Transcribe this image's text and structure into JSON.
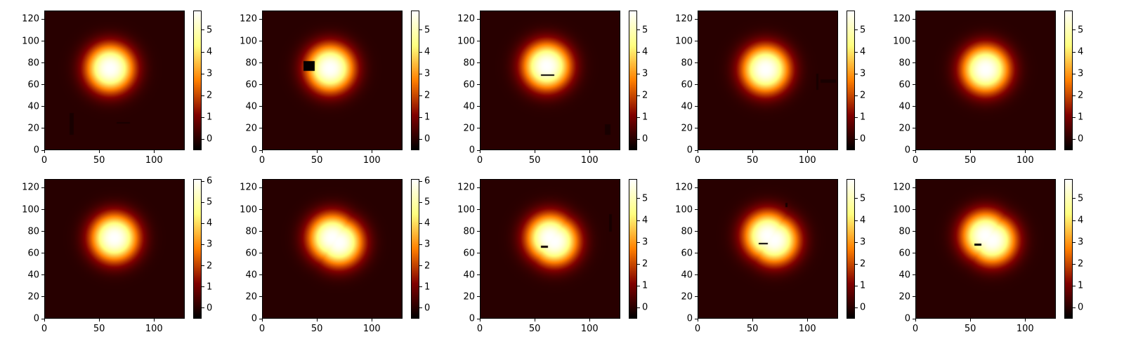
{
  "chart_data": [
    {
      "type": "heatmap",
      "title": "",
      "xlabel": "",
      "ylabel": "",
      "x_range": [
        0,
        128
      ],
      "y_range": [
        0,
        128
      ],
      "x_ticks": [
        0,
        50,
        100
      ],
      "y_ticks": [
        0,
        20,
        40,
        60,
        80,
        100,
        120
      ],
      "colormap": "afmhot",
      "colorbar_range": [
        -0.5,
        5.9
      ],
      "colorbar_ticks": [
        0,
        1,
        2,
        3,
        4,
        5
      ],
      "blob": {
        "center": [
          60,
          75
        ],
        "radius": 24,
        "peak": 5.9
      },
      "features": [
        {
          "kind": "rect",
          "x": [
            23,
            27
          ],
          "y": [
            14,
            34
          ],
          "value": -0.2
        },
        {
          "kind": "rect",
          "x": [
            66,
            78
          ],
          "y": [
            24.5,
            26
          ],
          "value": -0.2
        }
      ]
    },
    {
      "type": "heatmap",
      "title": "",
      "xlabel": "",
      "ylabel": "",
      "x_range": [
        0,
        128
      ],
      "y_range": [
        0,
        128
      ],
      "x_ticks": [
        0,
        50,
        100
      ],
      "y_ticks": [
        0,
        20,
        40,
        60,
        80,
        100,
        120
      ],
      "colormap": "afmhot",
      "colorbar_range": [
        -0.5,
        5.9
      ],
      "colorbar_ticks": [
        0,
        1,
        2,
        3,
        4,
        5
      ],
      "blob": {
        "center": [
          62,
          75
        ],
        "radius": 24,
        "peak": 5.9
      },
      "features": [
        {
          "kind": "rect",
          "x": [
            38,
            48
          ],
          "y": [
            73,
            82
          ],
          "value": -0.45
        }
      ]
    },
    {
      "type": "heatmap",
      "title": "",
      "xlabel": "",
      "ylabel": "",
      "x_range": [
        0,
        128
      ],
      "y_range": [
        0,
        128
      ],
      "x_ticks": [
        0,
        50,
        100
      ],
      "y_ticks": [
        0,
        20,
        40,
        60,
        80,
        100,
        120
      ],
      "colormap": "afmhot",
      "colorbar_range": [
        -0.5,
        5.9
      ],
      "colorbar_ticks": [
        0,
        1,
        2,
        3,
        4,
        5
      ],
      "blob": {
        "center": [
          61,
          77
        ],
        "radius": 24,
        "peak": 5.9
      },
      "features": [
        {
          "kind": "rect",
          "x": [
            56,
            68
          ],
          "y": [
            68,
            69.5
          ],
          "value": -0.45
        },
        {
          "kind": "rect",
          "x": [
            114,
            119
          ],
          "y": [
            14,
            24
          ],
          "value": -0.2
        }
      ]
    },
    {
      "type": "heatmap",
      "title": "",
      "xlabel": "",
      "ylabel": "",
      "x_range": [
        0,
        128
      ],
      "y_range": [
        0,
        128
      ],
      "x_ticks": [
        0,
        50,
        100
      ],
      "y_ticks": [
        0,
        20,
        40,
        60,
        80,
        100,
        120
      ],
      "colormap": "afmhot",
      "colorbar_range": [
        -0.5,
        5.9
      ],
      "colorbar_ticks": [
        0,
        1,
        2,
        3,
        4,
        5
      ],
      "blob": {
        "center": [
          62,
          74
        ],
        "radius": 24,
        "peak": 5.9
      },
      "features": [
        {
          "kind": "rect",
          "x": [
            108,
            110
          ],
          "y": [
            55,
            70
          ],
          "value": -0.2
        },
        {
          "kind": "rect",
          "x": [
            112,
            126
          ],
          "y": [
            62,
            65
          ],
          "value": -0.2
        }
      ]
    },
    {
      "type": "heatmap",
      "title": "",
      "xlabel": "",
      "ylabel": "",
      "x_range": [
        0,
        128
      ],
      "y_range": [
        0,
        128
      ],
      "x_ticks": [
        0,
        50,
        100
      ],
      "y_ticks": [
        0,
        20,
        40,
        60,
        80,
        100,
        120
      ],
      "colormap": "afmhot",
      "colorbar_range": [
        -0.5,
        5.9
      ],
      "colorbar_ticks": [
        0,
        1,
        2,
        3,
        4,
        5
      ],
      "blob": {
        "center": [
          64,
          74
        ],
        "radius": 24,
        "peak": 5.9
      },
      "features": []
    },
    {
      "type": "heatmap",
      "title": "",
      "xlabel": "",
      "ylabel": "",
      "x_range": [
        0,
        128
      ],
      "y_range": [
        0,
        128
      ],
      "x_ticks": [
        0,
        50,
        100
      ],
      "y_ticks": [
        0,
        20,
        40,
        60,
        80,
        100,
        120
      ],
      "colormap": "afmhot",
      "colorbar_range": [
        -0.5,
        6.1
      ],
      "colorbar_ticks": [
        0,
        1,
        2,
        3,
        4,
        5,
        6
      ],
      "blob": {
        "center": [
          64,
          74
        ],
        "radius": 24,
        "peak": 6.1
      },
      "features": []
    },
    {
      "type": "heatmap",
      "title": "",
      "xlabel": "",
      "ylabel": "",
      "x_range": [
        0,
        128
      ],
      "y_range": [
        0,
        128
      ],
      "x_ticks": [
        0,
        50,
        100
      ],
      "y_ticks": [
        0,
        20,
        40,
        60,
        80,
        100,
        120
      ],
      "colormap": "afmhot",
      "colorbar_range": [
        -0.5,
        6.1
      ],
      "colorbar_ticks": [
        0,
        1,
        2,
        3,
        4,
        5,
        6
      ],
      "blob": {
        "center": [
          64,
          74
        ],
        "radius": 24,
        "peak": 6.1,
        "second_center": [
          70,
          70
        ]
      },
      "features": []
    },
    {
      "type": "heatmap",
      "title": "",
      "xlabel": "",
      "ylabel": "",
      "x_range": [
        0,
        128
      ],
      "y_range": [
        0,
        128
      ],
      "x_ticks": [
        0,
        50,
        100
      ],
      "y_ticks": [
        0,
        20,
        40,
        60,
        80,
        100,
        120
      ],
      "colormap": "afmhot",
      "colorbar_range": [
        -0.5,
        5.9
      ],
      "colorbar_ticks": [
        0,
        1,
        2,
        3,
        4,
        5
      ],
      "blob": {
        "center": [
          64,
          74
        ],
        "radius": 24,
        "peak": 5.9,
        "second_center": [
          68,
          71
        ]
      },
      "features": [
        {
          "kind": "rect",
          "x": [
            118,
            120
          ],
          "y": [
            80,
            96
          ],
          "value": -0.2
        },
        {
          "kind": "rect",
          "x": [
            56,
            62
          ],
          "y": [
            65,
            67
          ],
          "value": -0.3
        }
      ]
    },
    {
      "type": "heatmap",
      "title": "",
      "xlabel": "",
      "ylabel": "",
      "x_range": [
        0,
        128
      ],
      "y_range": [
        0,
        128
      ],
      "x_ticks": [
        0,
        50,
        100
      ],
      "y_ticks": [
        0,
        20,
        40,
        60,
        80,
        100,
        120
      ],
      "colormap": "afmhot",
      "colorbar_range": [
        -0.5,
        5.9
      ],
      "colorbar_ticks": [
        0,
        1,
        2,
        3,
        4,
        5
      ],
      "blob": {
        "center": [
          64,
          76
        ],
        "radius": 24,
        "peak": 5.9,
        "second_center": [
          70,
          72
        ]
      },
      "features": [
        {
          "kind": "rect",
          "x": [
            56,
            64
          ],
          "y": [
            68,
            69.5
          ],
          "value": -0.45
        },
        {
          "kind": "rect",
          "x": [
            80,
            82
          ],
          "y": [
            102,
            106
          ],
          "value": -0.2
        }
      ]
    },
    {
      "type": "heatmap",
      "title": "",
      "xlabel": "",
      "ylabel": "",
      "x_range": [
        0,
        128
      ],
      "y_range": [
        0,
        128
      ],
      "x_ticks": [
        0,
        50,
        100
      ],
      "y_ticks": [
        0,
        20,
        40,
        60,
        80,
        100,
        120
      ],
      "colormap": "afmhot",
      "colorbar_range": [
        -0.5,
        5.9
      ],
      "colorbar_ticks": [
        0,
        1,
        2,
        3,
        4,
        5
      ],
      "blob": {
        "center": [
          64,
          76
        ],
        "radius": 24,
        "peak": 5.9,
        "second_center": [
          70,
          72
        ]
      },
      "features": [
        {
          "kind": "rect",
          "x": [
            54,
            60
          ],
          "y": [
            67,
            69
          ],
          "value": -0.45
        }
      ]
    }
  ]
}
